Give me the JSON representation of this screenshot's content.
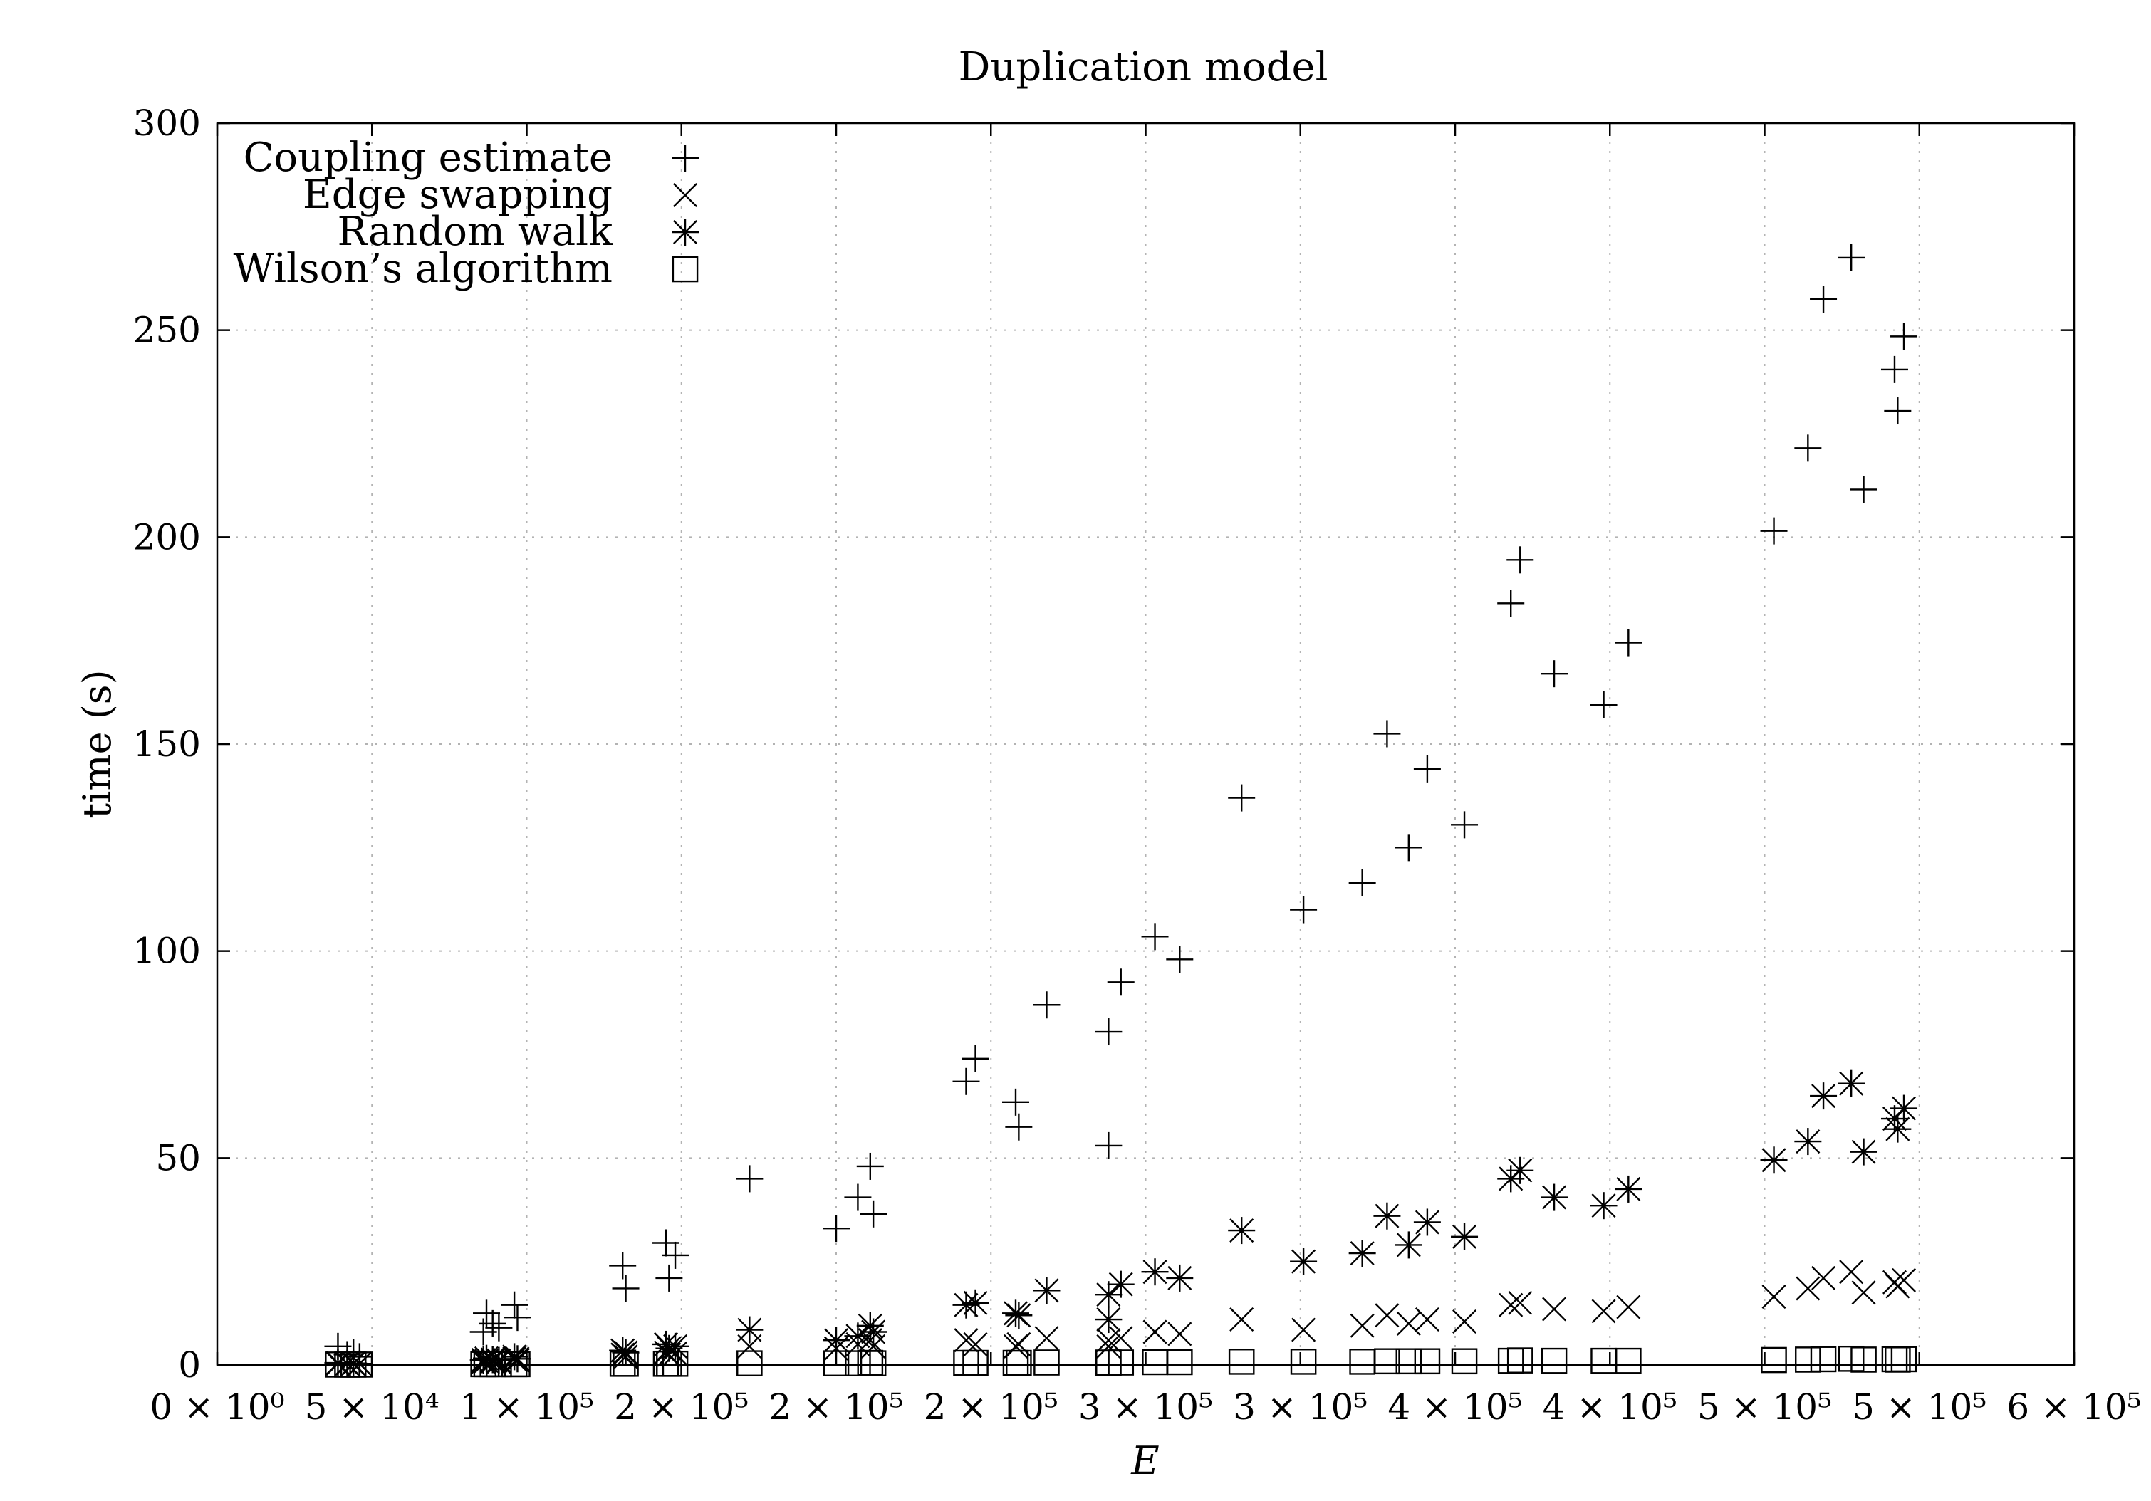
{
  "chart_data": {
    "type": "scatter",
    "title": "Duplication model",
    "xlabel": "E",
    "ylabel": "time (s)",
    "xlim": [
      0,
      600000
    ],
    "ylim": [
      0,
      300
    ],
    "grid": true,
    "legend_position": "top-left",
    "x_ticks": [
      {
        "value": 0,
        "label": "0 × 10⁰"
      },
      {
        "value": 50000,
        "label": "5 × 10⁴"
      },
      {
        "value": 100000,
        "label": "1 × 10⁵"
      },
      {
        "value": 150000,
        "label": "2 × 10⁵"
      },
      {
        "value": 200000,
        "label": "2 × 10⁵"
      },
      {
        "value": 250000,
        "label": "2 × 10⁵"
      },
      {
        "value": 300000,
        "label": "3 × 10⁵"
      },
      {
        "value": 350000,
        "label": "3 × 10⁵"
      },
      {
        "value": 400000,
        "label": "4 × 10⁵"
      },
      {
        "value": 450000,
        "label": "4 × 10⁵"
      },
      {
        "value": 500000,
        "label": "5 × 10⁵"
      },
      {
        "value": 550000,
        "label": "5 × 10⁵"
      },
      {
        "value": 600000,
        "label": "6 × 10⁵"
      }
    ],
    "y_ticks": [
      {
        "value": 0,
        "label": "0"
      },
      {
        "value": 50,
        "label": "50"
      },
      {
        "value": 100,
        "label": "100"
      },
      {
        "value": 150,
        "label": "150"
      },
      {
        "value": 200,
        "label": "200"
      },
      {
        "value": 250,
        "label": "250"
      },
      {
        "value": 300,
        "label": "300"
      }
    ],
    "series": [
      {
        "name": "Coupling estimate",
        "marker": "plus",
        "points": [
          [
            39000,
            4.5
          ],
          [
            42000,
            2.5
          ],
          [
            44000,
            3.0
          ],
          [
            46000,
            2.0
          ],
          [
            86000,
            8.0
          ],
          [
            87000,
            12.5
          ],
          [
            89000,
            10.0
          ],
          [
            91000,
            9.0
          ],
          [
            96000,
            14.5
          ],
          [
            97000,
            11.5
          ],
          [
            131000,
            24.0
          ],
          [
            132000,
            18.5
          ],
          [
            145000,
            29.5
          ],
          [
            146000,
            21.0
          ],
          [
            148000,
            26.5
          ],
          [
            172000,
            45.0
          ],
          [
            200000,
            33.0
          ],
          [
            207000,
            40.5
          ],
          [
            211000,
            48.0
          ],
          [
            212000,
            36.5
          ],
          [
            242000,
            68.5
          ],
          [
            245000,
            74.0
          ],
          [
            258000,
            63.5
          ],
          [
            259000,
            57.5
          ],
          [
            268000,
            87.0
          ],
          [
            288000,
            80.5
          ],
          [
            288000,
            53.0
          ],
          [
            292000,
            92.5
          ],
          [
            303000,
            103.5
          ],
          [
            311000,
            98.0
          ],
          [
            331000,
            137.0
          ],
          [
            351000,
            110.0
          ],
          [
            370000,
            116.5
          ],
          [
            378000,
            152.5
          ],
          [
            385000,
            125.0
          ],
          [
            391000,
            144.0
          ],
          [
            403000,
            130.5
          ],
          [
            418000,
            184.0
          ],
          [
            421000,
            194.5
          ],
          [
            432000,
            167.0
          ],
          [
            448000,
            159.5
          ],
          [
            456000,
            174.5
          ],
          [
            503000,
            201.5
          ],
          [
            514000,
            221.5
          ],
          [
            519000,
            257.5
          ],
          [
            528000,
            267.5
          ],
          [
            532000,
            211.5
          ],
          [
            542000,
            240.5
          ],
          [
            543000,
            230.5
          ],
          [
            545000,
            248.5
          ]
        ]
      },
      {
        "name": "Edge swapping",
        "marker": "cross",
        "points": [
          [
            39000,
            0.3
          ],
          [
            42000,
            0.3
          ],
          [
            44000,
            0.3
          ],
          [
            46000,
            0.3
          ],
          [
            86000,
            0.8
          ],
          [
            87000,
            1.0
          ],
          [
            89000,
            0.9
          ],
          [
            91000,
            0.8
          ],
          [
            96000,
            1.5
          ],
          [
            97000,
            1.1
          ],
          [
            131000,
            2.5
          ],
          [
            132000,
            2.0
          ],
          [
            145000,
            3.0
          ],
          [
            146000,
            2.5
          ],
          [
            148000,
            2.8
          ],
          [
            172000,
            4.5
          ],
          [
            200000,
            4.0
          ],
          [
            207000,
            5.0
          ],
          [
            211000,
            6.0
          ],
          [
            212000,
            4.5
          ],
          [
            242000,
            6.0
          ],
          [
            245000,
            5.0
          ],
          [
            258000,
            4.5
          ],
          [
            259000,
            5.0
          ],
          [
            268000,
            6.5
          ],
          [
            288000,
            6.0
          ],
          [
            288000,
            4.5
          ],
          [
            292000,
            6.5
          ],
          [
            303000,
            8.0
          ],
          [
            311000,
            7.5
          ],
          [
            331000,
            11.0
          ],
          [
            351000,
            8.5
          ],
          [
            370000,
            9.5
          ],
          [
            378000,
            12.0
          ],
          [
            385000,
            10.0
          ],
          [
            391000,
            11.0
          ],
          [
            403000,
            10.5
          ],
          [
            418000,
            14.5
          ],
          [
            421000,
            15.0
          ],
          [
            432000,
            13.5
          ],
          [
            448000,
            13.0
          ],
          [
            456000,
            14.0
          ],
          [
            503000,
            16.5
          ],
          [
            514000,
            18.5
          ],
          [
            519000,
            21.0
          ],
          [
            528000,
            22.5
          ],
          [
            532000,
            17.5
          ],
          [
            542000,
            20.0
          ],
          [
            543000,
            19.0
          ],
          [
            545000,
            20.5
          ]
        ]
      },
      {
        "name": "Random walk",
        "marker": "star",
        "points": [
          [
            39000,
            0.5
          ],
          [
            42000,
            0.4
          ],
          [
            44000,
            0.4
          ],
          [
            46000,
            0.3
          ],
          [
            86000,
            1.2
          ],
          [
            87000,
            1.6
          ],
          [
            89000,
            1.3
          ],
          [
            91000,
            1.1
          ],
          [
            96000,
            2.0
          ],
          [
            97000,
            1.5
          ],
          [
            131000,
            3.5
          ],
          [
            132000,
            3.0
          ],
          [
            145000,
            5.0
          ],
          [
            146000,
            4.0
          ],
          [
            148000,
            4.5
          ],
          [
            172000,
            8.5
          ],
          [
            200000,
            6.0
          ],
          [
            207000,
            7.0
          ],
          [
            211000,
            9.5
          ],
          [
            212000,
            8.0
          ],
          [
            242000,
            14.5
          ],
          [
            245000,
            15.0
          ],
          [
            258000,
            12.5
          ],
          [
            259000,
            12.0
          ],
          [
            268000,
            18.0
          ],
          [
            288000,
            17.0
          ],
          [
            288000,
            11.0
          ],
          [
            292000,
            19.5
          ],
          [
            303000,
            22.5
          ],
          [
            311000,
            21.0
          ],
          [
            331000,
            32.5
          ],
          [
            351000,
            25.0
          ],
          [
            370000,
            27.0
          ],
          [
            378000,
            36.0
          ],
          [
            385000,
            29.0
          ],
          [
            391000,
            34.5
          ],
          [
            403000,
            31.0
          ],
          [
            418000,
            45.0
          ],
          [
            421000,
            47.0
          ],
          [
            432000,
            40.5
          ],
          [
            448000,
            38.5
          ],
          [
            456000,
            42.5
          ],
          [
            503000,
            49.5
          ],
          [
            514000,
            54.0
          ],
          [
            519000,
            65.0
          ],
          [
            528000,
            68.0
          ],
          [
            532000,
            51.5
          ],
          [
            542000,
            59.5
          ],
          [
            543000,
            57.0
          ],
          [
            545000,
            62.0
          ]
        ]
      },
      {
        "name": "Wilson’s algorithm",
        "marker": "square",
        "points": [
          [
            39000,
            0.1
          ],
          [
            42000,
            0.1
          ],
          [
            44000,
            0.1
          ],
          [
            46000,
            0.1
          ],
          [
            86000,
            0.2
          ],
          [
            87000,
            0.2
          ],
          [
            89000,
            0.2
          ],
          [
            91000,
            0.2
          ],
          [
            96000,
            0.2
          ],
          [
            97000,
            0.2
          ],
          [
            131000,
            0.3
          ],
          [
            132000,
            0.3
          ],
          [
            145000,
            0.3
          ],
          [
            146000,
            0.3
          ],
          [
            148000,
            0.3
          ],
          [
            172000,
            0.4
          ],
          [
            200000,
            0.4
          ],
          [
            207000,
            0.4
          ],
          [
            211000,
            0.5
          ],
          [
            212000,
            0.4
          ],
          [
            242000,
            0.5
          ],
          [
            245000,
            0.5
          ],
          [
            258000,
            0.5
          ],
          [
            259000,
            0.5
          ],
          [
            268000,
            0.6
          ],
          [
            288000,
            0.6
          ],
          [
            288000,
            0.5
          ],
          [
            292000,
            0.6
          ],
          [
            303000,
            0.7
          ],
          [
            311000,
            0.7
          ],
          [
            331000,
            0.8
          ],
          [
            351000,
            0.8
          ],
          [
            370000,
            0.8
          ],
          [
            378000,
            0.9
          ],
          [
            385000,
            0.9
          ],
          [
            391000,
            0.9
          ],
          [
            403000,
            0.9
          ],
          [
            418000,
            1.0
          ],
          [
            421000,
            1.1
          ],
          [
            432000,
            1.0
          ],
          [
            448000,
            1.0
          ],
          [
            456000,
            1.0
          ],
          [
            503000,
            1.2
          ],
          [
            514000,
            1.3
          ],
          [
            519000,
            1.4
          ],
          [
            528000,
            1.5
          ],
          [
            532000,
            1.3
          ],
          [
            542000,
            1.4
          ],
          [
            543000,
            1.3
          ],
          [
            545000,
            1.4
          ]
        ]
      }
    ]
  }
}
